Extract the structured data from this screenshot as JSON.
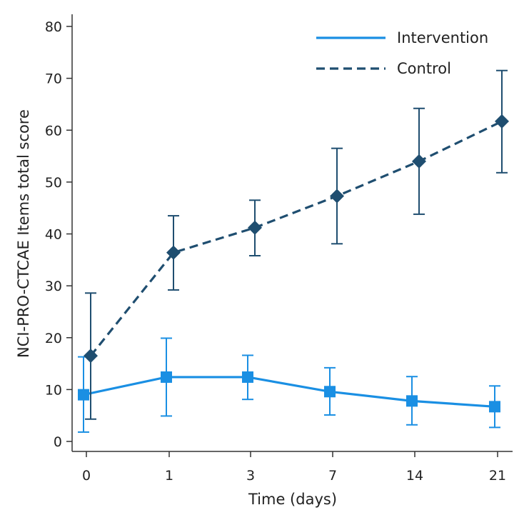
{
  "chart_data": {
    "type": "line",
    "title": "",
    "xlabel": "Time (days)",
    "ylabel": "NCI-PRO-CTCAE Items total score",
    "categories": [
      "0",
      "1",
      "3",
      "7",
      "14",
      "21"
    ],
    "ylim": [
      0,
      80
    ],
    "yticks": [
      0,
      10,
      20,
      30,
      40,
      50,
      60,
      70,
      80
    ],
    "legend_position": "top-right",
    "grid": false,
    "series": [
      {
        "name": "Intervention",
        "color": "#1a8fe3",
        "line_style": "solid",
        "marker": "square",
        "values": [
          9.0,
          12.4,
          12.4,
          9.6,
          7.8,
          6.7
        ],
        "error_low": [
          1.8,
          4.9,
          8.1,
          5.1,
          3.2,
          2.7
        ],
        "error_high": [
          16.3,
          19.9,
          16.6,
          14.2,
          12.5,
          10.7
        ]
      },
      {
        "name": "Control",
        "color": "#1f4e70",
        "line_style": "dashed",
        "marker": "diamond",
        "values": [
          16.5,
          36.4,
          41.2,
          47.3,
          54.0,
          61.7
        ],
        "error_low": [
          4.3,
          29.2,
          35.8,
          38.1,
          43.8,
          51.8
        ],
        "error_high": [
          28.6,
          43.5,
          46.5,
          56.5,
          64.2,
          71.5
        ]
      }
    ]
  }
}
